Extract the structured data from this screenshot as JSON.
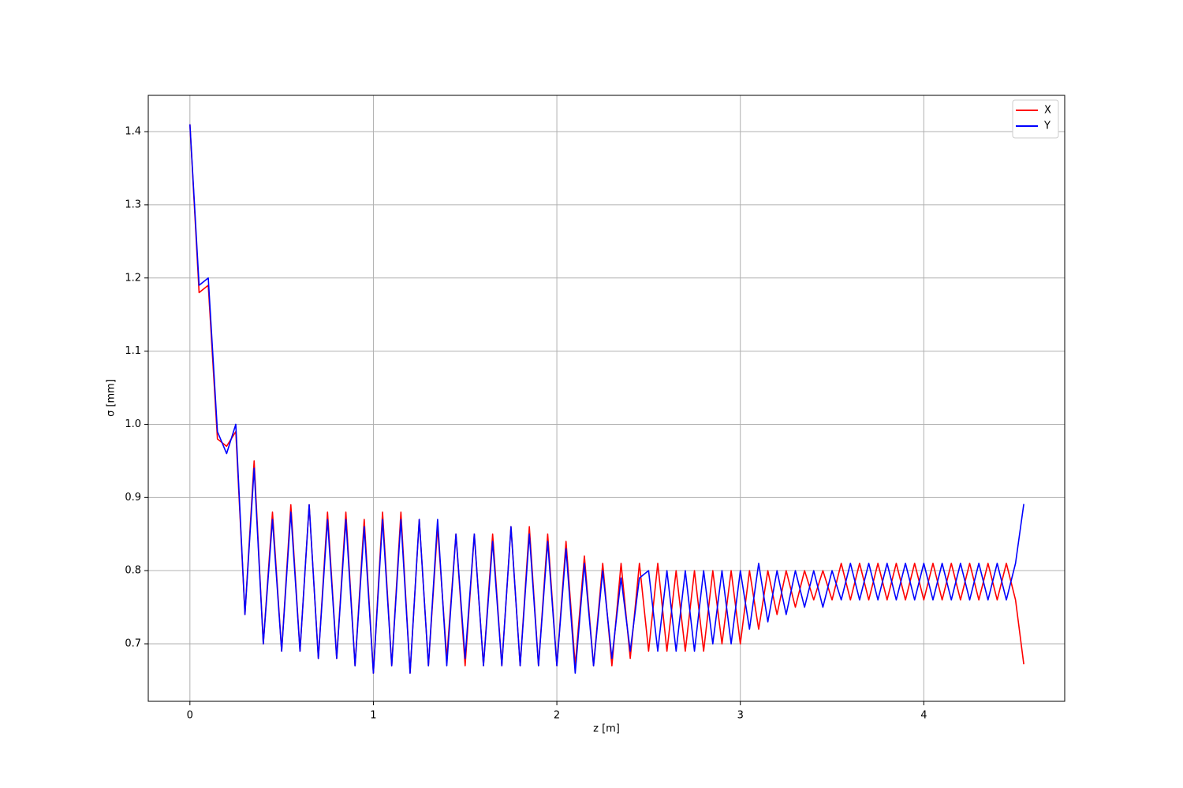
{
  "chart_data": {
    "type": "line",
    "xlabel": "z [m]",
    "ylabel": "σ [mm]",
    "x": [
      0,
      0.05,
      0.1,
      0.15,
      0.2,
      0.25,
      0.3,
      0.35,
      0.4,
      0.45,
      0.5,
      0.55,
      0.6,
      0.65,
      0.7,
      0.75,
      0.8,
      0.85,
      0.9,
      0.95,
      1.0,
      1.05,
      1.1,
      1.15,
      1.2,
      1.25,
      1.3,
      1.35,
      1.4,
      1.45,
      1.5,
      1.55,
      1.6,
      1.65,
      1.7,
      1.75,
      1.8,
      1.85,
      1.9,
      1.95,
      2.0,
      2.05,
      2.1,
      2.15,
      2.2,
      2.25,
      2.3,
      2.35,
      2.4,
      2.45,
      2.5,
      2.55,
      2.6,
      2.65,
      2.7,
      2.75,
      2.8,
      2.85,
      2.9,
      2.95,
      3.0,
      3.05,
      3.1,
      3.15,
      3.2,
      3.25,
      3.3,
      3.35,
      3.4,
      3.45,
      3.5,
      3.55,
      3.6,
      3.65,
      3.7,
      3.75,
      3.8,
      3.85,
      3.9,
      3.95,
      4.0,
      4.05,
      4.1,
      4.15,
      4.2,
      4.25,
      4.3,
      4.35,
      4.4,
      4.45,
      4.5,
      4.545
    ],
    "series": [
      {
        "name": "X",
        "color": "#ff0000",
        "values": [
          1.41,
          1.18,
          1.19,
          0.98,
          0.97,
          0.99,
          0.74,
          0.95,
          0.7,
          0.88,
          0.69,
          0.89,
          0.69,
          0.89,
          0.68,
          0.88,
          0.68,
          0.88,
          0.67,
          0.87,
          0.66,
          0.88,
          0.67,
          0.88,
          0.66,
          0.87,
          0.67,
          0.86,
          0.68,
          0.85,
          0.67,
          0.85,
          0.67,
          0.85,
          0.67,
          0.86,
          0.67,
          0.86,
          0.67,
          0.85,
          0.67,
          0.84,
          0.67,
          0.82,
          0.67,
          0.81,
          0.67,
          0.81,
          0.68,
          0.81,
          0.69,
          0.81,
          0.69,
          0.8,
          0.69,
          0.8,
          0.69,
          0.8,
          0.7,
          0.8,
          0.7,
          0.8,
          0.72,
          0.8,
          0.74,
          0.8,
          0.75,
          0.8,
          0.76,
          0.8,
          0.76,
          0.81,
          0.76,
          0.81,
          0.76,
          0.81,
          0.76,
          0.81,
          0.76,
          0.81,
          0.76,
          0.81,
          0.76,
          0.81,
          0.76,
          0.81,
          0.76,
          0.81,
          0.76,
          0.81,
          0.76,
          0.672
        ]
      },
      {
        "name": "Y",
        "color": "#0000ff",
        "values": [
          1.41,
          1.19,
          1.2,
          0.99,
          0.96,
          1.0,
          0.74,
          0.94,
          0.7,
          0.87,
          0.69,
          0.88,
          0.69,
          0.89,
          0.68,
          0.87,
          0.68,
          0.87,
          0.67,
          0.86,
          0.66,
          0.87,
          0.67,
          0.87,
          0.66,
          0.87,
          0.67,
          0.87,
          0.67,
          0.85,
          0.68,
          0.85,
          0.67,
          0.84,
          0.67,
          0.86,
          0.67,
          0.85,
          0.67,
          0.84,
          0.67,
          0.83,
          0.66,
          0.81,
          0.67,
          0.8,
          0.68,
          0.79,
          0.69,
          0.79,
          0.8,
          0.69,
          0.8,
          0.69,
          0.8,
          0.69,
          0.8,
          0.7,
          0.8,
          0.7,
          0.8,
          0.72,
          0.81,
          0.73,
          0.8,
          0.74,
          0.8,
          0.75,
          0.8,
          0.75,
          0.8,
          0.76,
          0.81,
          0.76,
          0.81,
          0.76,
          0.81,
          0.76,
          0.81,
          0.76,
          0.81,
          0.76,
          0.81,
          0.76,
          0.81,
          0.76,
          0.81,
          0.76,
          0.81,
          0.76,
          0.81,
          0.891
        ]
      }
    ],
    "xlim": [
      -0.227,
      4.768
    ],
    "ylim": [
      0.6214,
      1.4496
    ],
    "xticks": [
      0,
      1,
      2,
      3,
      4
    ],
    "yticks": [
      0.7,
      0.8,
      0.9,
      {
        "value": 1,
        "label": "1.0"
      },
      1.1,
      1.2,
      1.3,
      1.4
    ],
    "grid": true,
    "legend": "upper right"
  }
}
